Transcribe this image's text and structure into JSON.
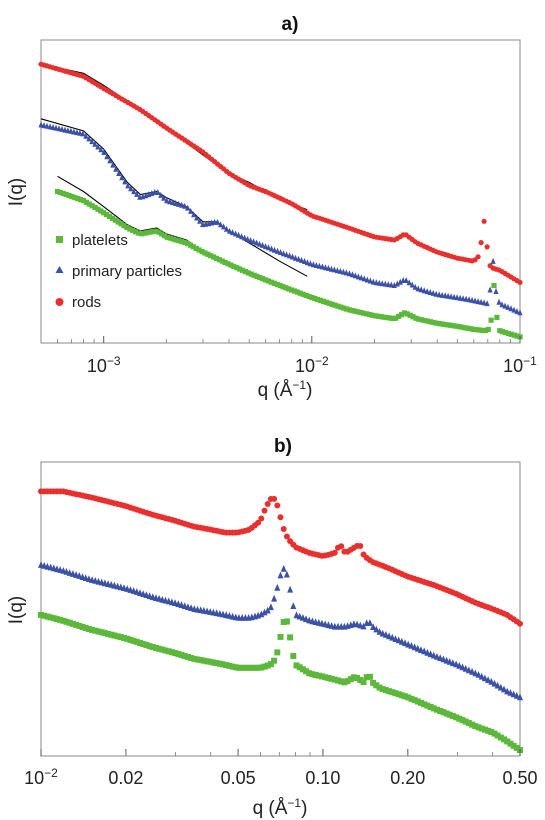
{
  "colors": {
    "rods": "#e8302f",
    "primary": "#3a51a6",
    "platelets": "#5cb83a",
    "fit": "#000000",
    "frame": "#888888"
  },
  "chart_data": [
    {
      "panel": "a)",
      "type": "scatter",
      "xlabel_main": "q (Å",
      "xlabel_sup": "−1",
      "xlabel_close": ")",
      "ylabel": "I(q)",
      "xscale": "log",
      "xlim": [
        0.0005,
        0.1
      ],
      "xticks": [
        {
          "value": 0.001,
          "base": "10",
          "exp": "−3"
        },
        {
          "value": 0.01,
          "base": "10",
          "exp": "−2"
        },
        {
          "value": 0.1,
          "base": "10",
          "exp": "−1"
        }
      ],
      "legend": [
        {
          "name": "platelets",
          "marker": "square",
          "color": "#5cb83a"
        },
        {
          "name": "primary particles",
          "marker": "triangle",
          "color": "#3a51a6"
        },
        {
          "name": "rods",
          "marker": "circle",
          "color": "#e8302f"
        }
      ],
      "series": [
        {
          "name": "rods",
          "marker": "circle",
          "color": "#e8302f",
          "x": [
            0.0005,
            0.0008,
            0.001,
            0.0015,
            0.002,
            0.003,
            0.004,
            0.005,
            0.006,
            0.008,
            0.01,
            0.015,
            0.02,
            0.025,
            0.028,
            0.032,
            0.04,
            0.05,
            0.06,
            0.064,
            0.067,
            0.069,
            0.072,
            0.08,
            0.1
          ],
          "y": [
            0.92,
            0.88,
            0.84,
            0.77,
            0.71,
            0.63,
            0.56,
            0.52,
            0.5,
            0.46,
            0.42,
            0.38,
            0.35,
            0.34,
            0.36,
            0.33,
            0.3,
            0.28,
            0.27,
            0.29,
            0.41,
            0.33,
            0.25,
            0.24,
            0.2
          ]
        },
        {
          "name": "primary particles",
          "marker": "triangle",
          "color": "#3a51a6",
          "x": [
            0.0005,
            0.0008,
            0.001,
            0.0013,
            0.0015,
            0.0018,
            0.002,
            0.0025,
            0.003,
            0.0035,
            0.004,
            0.005,
            0.007,
            0.01,
            0.015,
            0.02,
            0.025,
            0.028,
            0.032,
            0.04,
            0.05,
            0.06,
            0.07,
            0.072,
            0.075,
            0.077,
            0.08,
            0.1
          ],
          "y": [
            0.72,
            0.69,
            0.63,
            0.52,
            0.48,
            0.5,
            0.47,
            0.45,
            0.39,
            0.4,
            0.37,
            0.34,
            0.3,
            0.26,
            0.23,
            0.2,
            0.19,
            0.21,
            0.18,
            0.16,
            0.15,
            0.14,
            0.13,
            0.18,
            0.3,
            0.15,
            0.13,
            0.1
          ]
        },
        {
          "name": "platelets",
          "marker": "square",
          "color": "#5cb83a",
          "x": [
            0.0006,
            0.0008,
            0.001,
            0.0013,
            0.0015,
            0.0018,
            0.002,
            0.0025,
            0.003,
            0.004,
            0.005,
            0.007,
            0.01,
            0.015,
            0.02,
            0.025,
            0.028,
            0.032,
            0.04,
            0.05,
            0.06,
            0.07,
            0.073,
            0.075,
            0.078,
            0.08,
            0.1
          ],
          "y": [
            0.5,
            0.47,
            0.43,
            0.38,
            0.36,
            0.37,
            0.35,
            0.33,
            0.3,
            0.26,
            0.23,
            0.19,
            0.15,
            0.11,
            0.09,
            0.08,
            0.1,
            0.08,
            0.065,
            0.055,
            0.045,
            0.04,
            0.08,
            0.19,
            0.06,
            0.04,
            0.02
          ]
        }
      ],
      "fits": [
        {
          "x": [
            0.0005,
            0.0008,
            0.001,
            0.0015,
            0.002,
            0.003,
            0.004,
            0.005,
            0.006,
            0.008,
            0.0095
          ],
          "y": [
            0.92,
            0.89,
            0.85,
            0.77,
            0.71,
            0.62,
            0.56,
            0.53,
            0.5,
            0.46,
            0.44
          ]
        },
        {
          "x": [
            0.0005,
            0.0008,
            0.001,
            0.0013,
            0.0015,
            0.0018,
            0.002,
            0.0025,
            0.003,
            0.0035,
            0.004,
            0.005,
            0.007,
            0.0095
          ],
          "y": [
            0.74,
            0.7,
            0.64,
            0.53,
            0.49,
            0.5,
            0.48,
            0.45,
            0.4,
            0.4,
            0.37,
            0.33,
            0.27,
            0.22
          ]
        },
        {
          "x": [
            0.0006,
            0.0008,
            0.001,
            0.0013,
            0.0015,
            0.0018,
            0.002,
            0.0025,
            0.003,
            0.004,
            0.005,
            0.007,
            0.0095
          ],
          "y": [
            0.55,
            0.5,
            0.45,
            0.39,
            0.37,
            0.38,
            0.36,
            0.34,
            0.3,
            0.26,
            0.23,
            0.19,
            0.15
          ]
        }
      ]
    },
    {
      "panel": "b)",
      "type": "scatter",
      "xlabel_main": "q (Å",
      "xlabel_sup": "−1",
      "xlabel_close": ")",
      "ylabel": "I(q)",
      "xscale": "log",
      "xlim": [
        0.01,
        0.5
      ],
      "xticks": [
        {
          "value": 0.01,
          "base": "10",
          "exp": "−2"
        },
        {
          "value": 0.02,
          "label": "0.02"
        },
        {
          "value": 0.05,
          "label": "0.05"
        },
        {
          "value": 0.1,
          "label": "0.10"
        },
        {
          "value": 0.2,
          "label": "0.20"
        },
        {
          "value": 0.5,
          "label": "0.50"
        }
      ],
      "series": [
        {
          "name": "rods",
          "marker": "circle",
          "color": "#e8302f",
          "x": [
            0.01,
            0.012,
            0.015,
            0.02,
            0.025,
            0.03,
            0.035,
            0.04,
            0.045,
            0.05,
            0.055,
            0.06,
            0.063,
            0.066,
            0.068,
            0.07,
            0.072,
            0.075,
            0.08,
            0.09,
            0.1,
            0.11,
            0.115,
            0.12,
            0.13,
            0.135,
            0.14,
            0.15,
            0.17,
            0.2,
            0.25,
            0.3,
            0.35,
            0.4,
            0.45,
            0.5
          ],
          "y": [
            0.9,
            0.9,
            0.88,
            0.85,
            0.82,
            0.8,
            0.78,
            0.77,
            0.76,
            0.76,
            0.77,
            0.8,
            0.85,
            0.88,
            0.87,
            0.83,
            0.78,
            0.74,
            0.71,
            0.69,
            0.68,
            0.69,
            0.72,
            0.69,
            0.71,
            0.72,
            0.68,
            0.66,
            0.64,
            0.61,
            0.58,
            0.55,
            0.52,
            0.5,
            0.48,
            0.45
          ]
        },
        {
          "name": "primary particles",
          "marker": "triangle",
          "color": "#3a51a6",
          "x": [
            0.01,
            0.012,
            0.015,
            0.02,
            0.025,
            0.03,
            0.035,
            0.04,
            0.045,
            0.05,
            0.055,
            0.06,
            0.065,
            0.068,
            0.07,
            0.072,
            0.074,
            0.076,
            0.078,
            0.08,
            0.09,
            0.1,
            0.11,
            0.12,
            0.13,
            0.14,
            0.145,
            0.15,
            0.16,
            0.2,
            0.25,
            0.3,
            0.35,
            0.4,
            0.45,
            0.5
          ],
          "y": [
            0.65,
            0.63,
            0.6,
            0.57,
            0.54,
            0.52,
            0.5,
            0.49,
            0.48,
            0.47,
            0.47,
            0.48,
            0.5,
            0.55,
            0.6,
            0.64,
            0.63,
            0.58,
            0.52,
            0.48,
            0.46,
            0.45,
            0.44,
            0.44,
            0.45,
            0.44,
            0.46,
            0.44,
            0.42,
            0.38,
            0.34,
            0.31,
            0.28,
            0.25,
            0.22,
            0.2
          ]
        },
        {
          "name": "platelets",
          "marker": "square",
          "color": "#5cb83a",
          "x": [
            0.01,
            0.012,
            0.015,
            0.02,
            0.025,
            0.03,
            0.035,
            0.04,
            0.045,
            0.05,
            0.055,
            0.06,
            0.065,
            0.068,
            0.07,
            0.072,
            0.074,
            0.076,
            0.078,
            0.08,
            0.09,
            0.1,
            0.11,
            0.12,
            0.13,
            0.14,
            0.145,
            0.15,
            0.16,
            0.2,
            0.25,
            0.3,
            0.35,
            0.4,
            0.45,
            0.5
          ],
          "y": [
            0.48,
            0.46,
            0.43,
            0.4,
            0.37,
            0.35,
            0.33,
            0.32,
            0.31,
            0.3,
            0.3,
            0.3,
            0.31,
            0.33,
            0.38,
            0.45,
            0.47,
            0.42,
            0.35,
            0.31,
            0.28,
            0.27,
            0.26,
            0.25,
            0.27,
            0.25,
            0.28,
            0.25,
            0.23,
            0.2,
            0.16,
            0.13,
            0.1,
            0.08,
            0.05,
            0.02
          ]
        }
      ]
    }
  ]
}
